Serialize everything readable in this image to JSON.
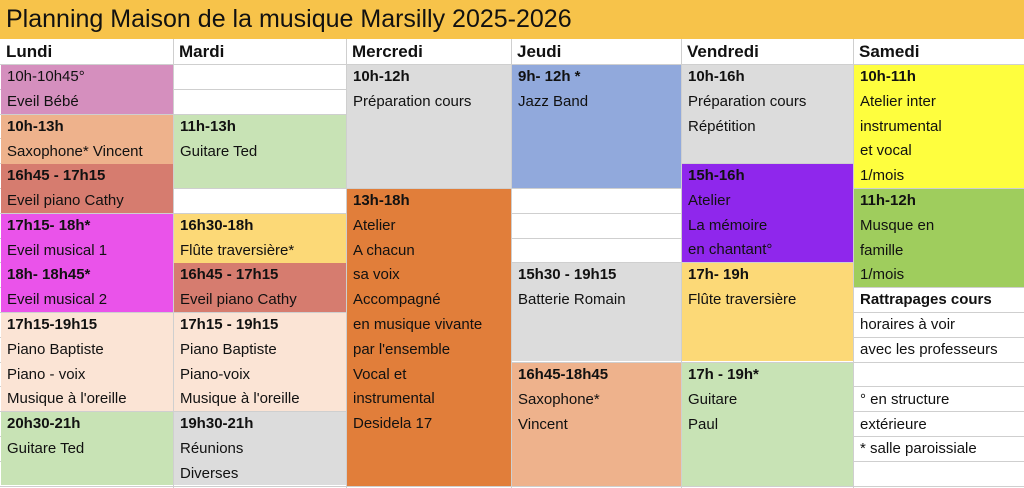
{
  "title": "Planning Maison de la musique Marsilly 2025-2026",
  "days": [
    "Lundi",
    "Mardi",
    "Mercredi",
    "Jeudi",
    "Vendredi",
    "Samedi"
  ],
  "colors": {
    "header": "#f7c34a",
    "mauve": "#d58fbe",
    "peach": "#eeb28c",
    "brick": "#d67c6f",
    "magenta": "#ea53ea",
    "cream": "#fbe4d5",
    "light_green": "#c8e3b5",
    "sage": "#b7d8a4",
    "yellow_orange": "#fcd977",
    "grey": "#dcdcdc",
    "orange": "#e17e3a",
    "blue": "#91a9dc",
    "purple": "#8f27ec",
    "yellow": "#fefe3e",
    "green": "#9fcd5d",
    "white": "#ffffff"
  },
  "events": [
    {
      "col": 0,
      "row": 0,
      "rows": 2,
      "color": "mauve",
      "lines": [
        {
          "t": "10h-10h45°"
        },
        {
          "t": "Eveil Bébé"
        }
      ]
    },
    {
      "col": 0,
      "row": 2,
      "rows": 2,
      "color": "peach",
      "lines": [
        {
          "t": "10h-13h",
          "b": true
        },
        {
          "t": "Saxophone* Vincent"
        }
      ]
    },
    {
      "col": 0,
      "row": 4,
      "rows": 2,
      "color": "brick",
      "lines": [
        {
          "t": "16h45 - 17h15",
          "b": true
        },
        {
          "t": "Eveil piano Cathy"
        }
      ]
    },
    {
      "col": 0,
      "row": 6,
      "rows": 2,
      "color": "magenta",
      "lines": [
        {
          "t": "17h15- 18h*",
          "b": true
        },
        {
          "t": "Eveil musical 1"
        }
      ]
    },
    {
      "col": 0,
      "row": 8,
      "rows": 2,
      "color": "magenta",
      "lines": [
        {
          "t": "18h- 18h45*",
          "b": true
        },
        {
          "t": "Eveil musical 2"
        }
      ]
    },
    {
      "col": 0,
      "row": 10,
      "rows": 4,
      "color": "cream",
      "lines": [
        {
          "t": "17h15-19h15",
          "b": true
        },
        {
          "t": "Piano Baptiste"
        },
        {
          "t": "Piano - voix"
        },
        {
          "t": "Musique à l'oreille"
        }
      ]
    },
    {
      "col": 0,
      "row": 14,
      "rows": 3,
      "color": "light_green",
      "lines": [
        {
          "t": "20h30-21h",
          "b": true
        },
        {
          "t": "Guitare Ted"
        }
      ]
    },
    {
      "col": 1,
      "row": 2,
      "rows": 3,
      "color": "light_green",
      "lines": [
        {
          "t": "11h-13h",
          "b": true
        },
        {
          "t": "Guitare Ted"
        }
      ]
    },
    {
      "col": 1,
      "row": 6,
      "rows": 2,
      "color": "yellow_orange",
      "lines": [
        {
          "t": "16h30-18h",
          "b": true
        },
        {
          "t": "Flûte traversière*"
        }
      ]
    },
    {
      "col": 1,
      "row": 8,
      "rows": 2,
      "color": "brick",
      "lines": [
        {
          "t": "16h45 - 17h15",
          "b": true
        },
        {
          "t": "Eveil piano Cathy"
        }
      ]
    },
    {
      "col": 1,
      "row": 10,
      "rows": 4,
      "color": "cream",
      "lines": [
        {
          "t": "17h15 - 19h15",
          "b": true
        },
        {
          "t": "Piano Baptiste"
        },
        {
          "t": "Piano-voix"
        },
        {
          "t": "Musique à l'oreille"
        }
      ]
    },
    {
      "col": 1,
      "row": 14,
      "rows": 3,
      "color": "grey",
      "lines": [
        {
          "t": "19h30-21h",
          "b": true
        },
        {
          "t": "Réunions"
        },
        {
          "t": "Diverses"
        }
      ]
    },
    {
      "col": 2,
      "row": 0,
      "rows": 5,
      "color": "grey",
      "lines": [
        {
          "t": "10h-12h",
          "b": true
        },
        {
          "t": "Préparation cours"
        }
      ]
    },
    {
      "col": 2,
      "row": 5,
      "rows": 12,
      "color": "orange",
      "lines": [
        {
          "t": "13h-18h",
          "b": true
        },
        {
          "t": "Atelier"
        },
        {
          "t": "A chacun"
        },
        {
          "t": "sa voix"
        },
        {
          "t": "Accompagné"
        },
        {
          "t": "en musique vivante"
        },
        {
          "t": "par l'ensemble"
        },
        {
          "t": "Vocal et"
        },
        {
          "t": "instrumental"
        },
        {
          "t": "Desidela 17"
        }
      ]
    },
    {
      "col": 3,
      "row": 0,
      "rows": 5,
      "color": "blue",
      "lines": [
        {
          "t": "9h- 12h *",
          "b": true
        },
        {
          "t": "Jazz Band"
        }
      ]
    },
    {
      "col": 3,
      "row": 8,
      "rows": 4,
      "color": "grey",
      "lines": [
        {
          "t": "15h30 - 19h15",
          "b": true
        },
        {
          "t": "Batterie Romain"
        }
      ]
    },
    {
      "col": 3,
      "row": 12,
      "rows": 5,
      "color": "peach",
      "lines": [
        {
          "t": "16h45-18h45",
          "b": true
        },
        {
          "t": "Saxophone*"
        },
        {
          "t": " Vincent"
        }
      ]
    },
    {
      "col": 4,
      "row": 0,
      "rows": 4,
      "color": "grey",
      "lines": [
        {
          "t": "10h-16h",
          "b": true
        },
        {
          "t": "Préparation cours"
        },
        {
          "t": "Répétition"
        }
      ]
    },
    {
      "col": 4,
      "row": 4,
      "rows": 4,
      "color": "purple",
      "lines": [
        {
          "t": "15h-16h",
          "b": true
        },
        {
          "t": "Atelier"
        },
        {
          "t": "La mémoire"
        },
        {
          "t": "en chantant°"
        }
      ]
    },
    {
      "col": 4,
      "row": 8,
      "rows": 4,
      "color": "yellow_orange",
      "lines": [
        {
          "t": "17h- 19h",
          "b": true
        },
        {
          "t": "Flûte traversière"
        }
      ]
    },
    {
      "col": 4,
      "row": 12,
      "rows": 5,
      "color": "light_green",
      "lines": [
        {
          "t": "17h - 19h*",
          "b": true
        },
        {
          "t": "Guitare"
        },
        {
          "t": "Paul"
        }
      ]
    },
    {
      "col": 5,
      "row": 0,
      "rows": 5,
      "color": "yellow",
      "lines": [
        {
          "t": "10h-11h",
          "b": true
        },
        {
          "t": "Atelier inter"
        },
        {
          "t": "instrumental"
        },
        {
          "t": "et vocal"
        },
        {
          "t": "1/mois"
        }
      ]
    },
    {
      "col": 5,
      "row": 5,
      "rows": 4,
      "color": "green",
      "lines": [
        {
          "t": "11h-12h",
          "b": true
        },
        {
          "t": "Musque en"
        },
        {
          "t": "famille"
        },
        {
          "t": "1/mois"
        }
      ]
    },
    {
      "col": 5,
      "row": 9,
      "rows": 3,
      "color": "white",
      "lines": [
        {
          "t": "Rattrapages cours",
          "b": true
        },
        {
          "t": "horaires à voir"
        },
        {
          "t": "avec les professeurs"
        }
      ]
    },
    {
      "col": 5,
      "row": 12,
      "rows": 5,
      "color": "white",
      "lines": [
        {
          "t": ""
        },
        {
          "t": "° en structure"
        },
        {
          "t": "extérieure"
        },
        {
          "t": "* salle paroissiale"
        }
      ]
    }
  ]
}
